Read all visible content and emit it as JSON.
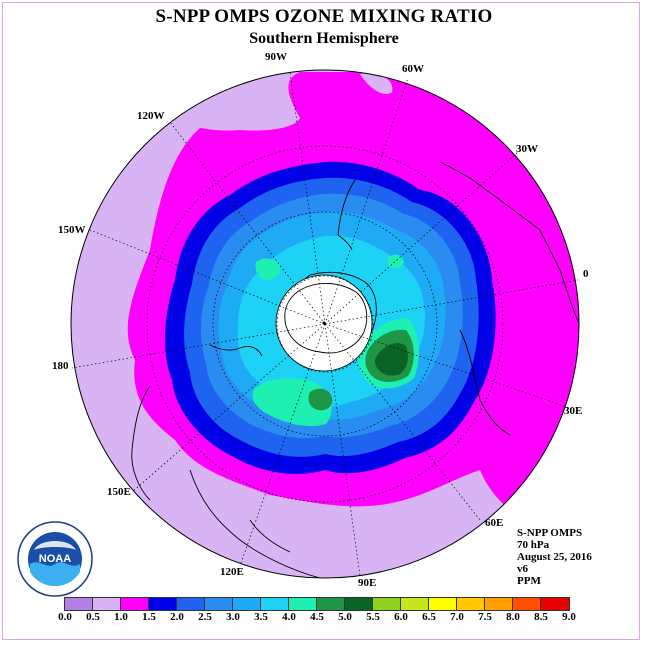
{
  "title": "S-NPP OMPS OZONE MIXING RATIO",
  "subtitle": "Southern Hemisphere",
  "longitude_labels": [
    {
      "text": "90W",
      "name": "lon-90w"
    },
    {
      "text": "60W",
      "name": "lon-60w"
    },
    {
      "text": "30W",
      "name": "lon-30w"
    },
    {
      "text": "0",
      "name": "lon-0"
    },
    {
      "text": "30E",
      "name": "lon-30e"
    },
    {
      "text": "60E",
      "name": "lon-60e"
    },
    {
      "text": "90E",
      "name": "lon-90e"
    },
    {
      "text": "120E",
      "name": "lon-120e"
    },
    {
      "text": "150E",
      "name": "lon-150e"
    },
    {
      "text": "180",
      "name": "lon-180"
    },
    {
      "text": "150W",
      "name": "lon-150w"
    },
    {
      "text": "120W",
      "name": "lon-120w"
    }
  ],
  "info": {
    "instrument": "S-NPP OMPS",
    "level": "70 hPa",
    "date": "August 25, 2016",
    "version": "v6",
    "units": "PPM"
  },
  "logo_text": "NOAA",
  "colorbar": {
    "ticks": [
      "0.0",
      "0.5",
      "1.0",
      "1.5",
      "2.0",
      "2.5",
      "3.0",
      "3.5",
      "4.0",
      "4.5",
      "5.0",
      "5.5",
      "6.0",
      "6.5",
      "7.0",
      "7.5",
      "8.0",
      "8.5",
      "9.0"
    ],
    "colors": [
      "#b57fe8",
      "#d9b4f5",
      "#ff00ff",
      "#0000e6",
      "#1e64f0",
      "#2a8cf0",
      "#1eaaf5",
      "#1ed2f5",
      "#1ef0b4",
      "#1e9646",
      "#0a6428",
      "#8cd21e",
      "#c8e61e",
      "#ffff00",
      "#ffc800",
      "#ffa000",
      "#ff5000",
      "#e60000",
      "#8c5a3c"
    ]
  },
  "colors": {
    "very_low": "#d9b4f5",
    "low": "#ff00ff",
    "band_2": "#0000e6",
    "band_25": "#1e64f0",
    "band_3": "#2a8cf0",
    "band_35": "#1eaaf5",
    "band_4": "#1ed2f5",
    "band_45": "#1ef0b4",
    "band_5": "#1e9646",
    "band_55": "#0a6428"
  }
}
